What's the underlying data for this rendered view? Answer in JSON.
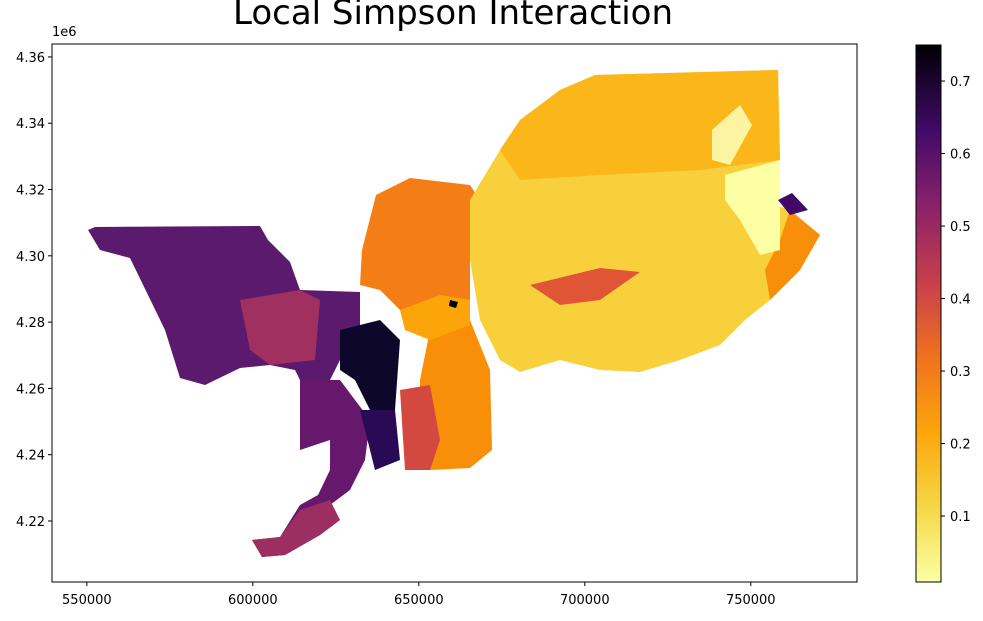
{
  "chart_data": {
    "type": "choropleth",
    "title": "Local Simpson Interaction",
    "xlim": [
      539500,
      782000
    ],
    "xticks": [
      550000,
      600000,
      650000,
      700000,
      750000
    ],
    "ylim": [
      4201600,
      4363900
    ],
    "yticks": [
      {
        "value": 4220000,
        "label": "4.22"
      },
      {
        "value": 4240000,
        "label": "4.24"
      },
      {
        "value": 4260000,
        "label": "4.26"
      },
      {
        "value": 4280000,
        "label": "4.28"
      },
      {
        "value": 4300000,
        "label": "4.30"
      },
      {
        "value": 4320000,
        "label": "4.32"
      },
      {
        "value": 4340000,
        "label": "4.34"
      },
      {
        "value": 4360000,
        "label": "4.36"
      }
    ],
    "y_offset_label": "1e6",
    "colorbar_lim": [
      0.009,
      0.7497
    ],
    "colorbar_ticks": [
      0.1,
      0.2,
      0.3,
      0.4,
      0.5,
      0.6,
      0.7
    ]
  }
}
